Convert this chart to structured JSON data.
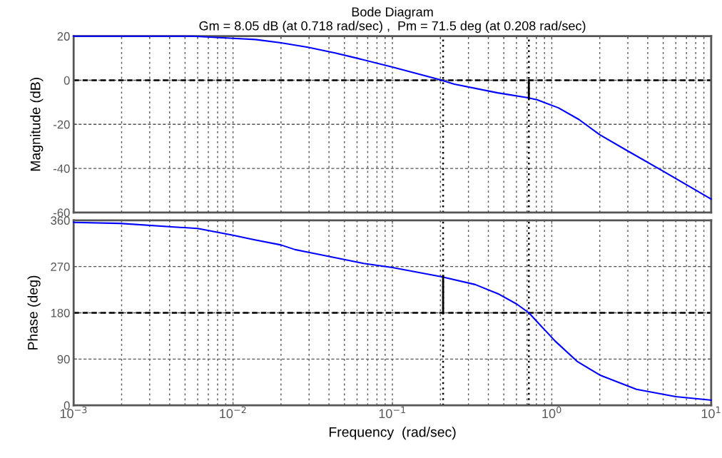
{
  "chart_data": [
    {
      "type": "line",
      "title": "Bode Diagram",
      "subtitle": "Gm = 8.05 dB (at 0.718 rad/sec) ,  Pm = 71.5 deg (at 0.208 rad/sec)",
      "ylabel": "Magnitude (dB)",
      "log": "x",
      "grid": true,
      "tick_labels": "y",
      "xlim": [
        0.001,
        10
      ],
      "ylim": [
        -60,
        20
      ],
      "yticks": [
        -60,
        -40,
        -20,
        0,
        20
      ],
      "xticks": [
        {
          "value": 0.001,
          "label": null
        },
        {
          "value": 0.01,
          "label": null
        },
        {
          "value": 0.1,
          "label": null
        },
        {
          "value": 1,
          "label": null
        },
        {
          "value": 10,
          "label": null
        }
      ],
      "series": [
        {
          "color": "#0000ff",
          "x": [
            0.001,
            0.0056,
            0.01,
            0.0138,
            0.02,
            0.0295,
            0.0437,
            0.06,
            0.1,
            0.195,
            0.245,
            0.457,
            0.708,
            0.813,
            1.1,
            1.48,
            2.0,
            2.95,
            4.9,
            10
          ],
          "values": [
            20,
            20,
            19,
            18.5,
            17,
            15,
            12.4,
            10,
            6,
            0.4,
            -1.8,
            -5.7,
            -7.9,
            -8.9,
            -12.5,
            -17.8,
            -24.7,
            -31.8,
            -40.9,
            -53.9
          ]
        },
        {
          "color": "#000000",
          "x": [
            0.718,
            0.718
          ],
          "values": [
            0,
            -8
          ]
        }
      ],
      "ref_lines": [
        {
          "axis": "y",
          "value": 0,
          "color": "#000000",
          "line_style": "dashed"
        },
        {
          "axis": "x",
          "value": 0.208,
          "color": "#000000",
          "line_style": "dotted"
        },
        {
          "axis": "x",
          "value": 0.718,
          "color": "#000000",
          "line_style": "dotted"
        }
      ]
    },
    {
      "type": "line",
      "ylabel": "Phase (deg)",
      "xlabel": "Frequency  (rad/sec)",
      "log": "x",
      "grid": true,
      "xlim": [
        0.001,
        10
      ],
      "ylim": [
        0,
        360
      ],
      "yticks": [
        0,
        90,
        180,
        270,
        360
      ],
      "xticks": [
        {
          "value": 0.001,
          "label": "10$^{−3}$"
        },
        {
          "value": 0.01,
          "label": "10$^{−2}$"
        },
        {
          "value": 0.1,
          "label": "10$^{−1}$"
        },
        {
          "value": 1,
          "label": "10$^{0}$"
        },
        {
          "value": 10,
          "label": "10$^{1}$"
        }
      ],
      "series": [
        {
          "color": "#0000ff",
          "x": [
            0.001,
            0.00195,
            0.006,
            0.01,
            0.0132,
            0.02,
            0.0245,
            0.0295,
            0.066,
            0.1,
            0.204,
            0.331,
            0.468,
            0.603,
            0.718,
            0.813,
            1.05,
            1.45,
            2.0,
            3.4,
            6.0,
            10
          ],
          "values": [
            356,
            354,
            344,
            331,
            323,
            312,
            303,
            298,
            276,
            268,
            250,
            235,
            216,
            197,
            180,
            162,
            125,
            85,
            59,
            31,
            17,
            10
          ]
        },
        {
          "color": "#000000",
          "x": [
            0.208,
            0.208
          ],
          "values": [
            180,
            252
          ]
        }
      ],
      "ref_lines": [
        {
          "axis": "y",
          "value": 180,
          "color": "#000000",
          "line_style": "dashed"
        },
        {
          "axis": "x",
          "value": 0.208,
          "color": "#000000",
          "line_style": "dotted"
        },
        {
          "axis": "x",
          "value": 0.718,
          "color": "#000000",
          "line_style": "dotted"
        }
      ]
    }
  ]
}
